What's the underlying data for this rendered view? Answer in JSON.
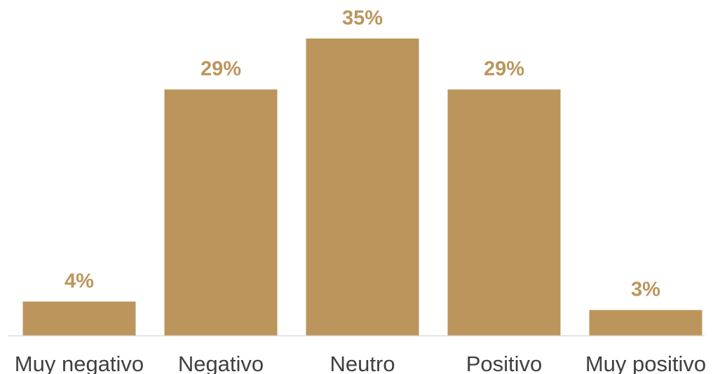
{
  "chart_data": {
    "type": "bar",
    "categories": [
      "Muy negativo",
      "Negativo",
      "Neutro",
      "Positivo",
      "Muy positivo"
    ],
    "values": [
      4,
      29,
      35,
      29,
      3
    ],
    "data_labels": [
      "4%",
      "29%",
      "35%",
      "29%",
      "3%"
    ],
    "value_unit": "%",
    "ylim": [
      0,
      35
    ],
    "grid": false,
    "legend": "none",
    "colors": {
      "bar": "#BC955C",
      "label": "#BC955C",
      "axis": "#D9D9D9",
      "category_text": "#404040"
    }
  }
}
